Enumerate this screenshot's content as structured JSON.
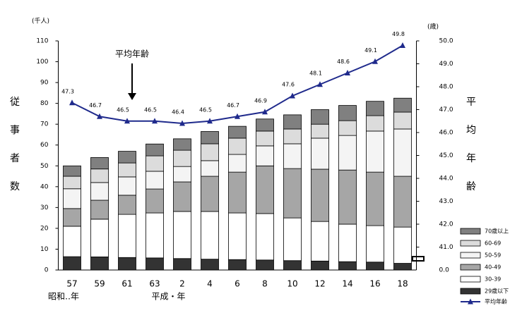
{
  "chart_data": {
    "type": "stacked_bar_line",
    "y_unit_label": "(千人)",
    "y2_unit_label": "(歳)",
    "y_axis_title": "従事者数",
    "y2_axis_title": "平均年齢",
    "annotation": "平均年齢",
    "era_labels": [
      "昭和‥年",
      "平成・年"
    ],
    "categories": [
      "57",
      "59",
      "61",
      "63",
      "2",
      "4",
      "6",
      "8",
      "10",
      "12",
      "14",
      "16",
      "18"
    ],
    "series": [
      {
        "name": "29歳以下",
        "color": "#333333",
        "values": [
          6.4,
          6.3,
          6,
          5.8,
          5.5,
          5.2,
          5,
          4.8,
          4.5,
          4.3,
          4,
          3.8,
          3.2
        ]
      },
      {
        "name": "30-39",
        "color": "#ffffff",
        "values": [
          14.6,
          18.1,
          20.7,
          21.6,
          22.6,
          22.9,
          22.4,
          22.3,
          20.5,
          19,
          18,
          17.5,
          17.4
        ]
      },
      {
        "name": "40-49",
        "color": "#a6a6a6",
        "values": [
          8.5,
          9.1,
          9.2,
          11.5,
          14.2,
          16.9,
          19.6,
          22.9,
          23.7,
          25.1,
          26,
          25.7,
          24.4
        ]
      },
      {
        "name": "50-59",
        "color": "#f4f4f4",
        "values": [
          9.5,
          8.5,
          8.8,
          8.5,
          7.4,
          7.5,
          8.5,
          9.6,
          11.9,
          14.9,
          16.6,
          19.7,
          22.7
        ]
      },
      {
        "name": "60-69",
        "color": "#dcdcdc",
        "values": [
          6,
          6.5,
          6.7,
          7.4,
          7.8,
          8.1,
          7.8,
          7.1,
          7.1,
          6.7,
          7.1,
          7.4,
          8.1
        ]
      },
      {
        "name": "70歳以上",
        "color": "#808080",
        "values": [
          5,
          5.5,
          5.6,
          5.7,
          5.5,
          5.9,
          5.7,
          5.8,
          6.8,
          7,
          7.3,
          6.9,
          6.7
        ]
      },
      {
        "name": "平均年齢",
        "color": "#1f2a8c",
        "axis": "y2",
        "type": "line",
        "values": [
          47.3,
          46.7,
          46.5,
          46.5,
          46.4,
          46.5,
          46.7,
          46.9,
          47.6,
          48.1,
          48.6,
          49.1,
          49.8
        ]
      }
    ],
    "ylim": [
      0,
      110
    ],
    "yticks": [
      0,
      10,
      20,
      30,
      40,
      50,
      60,
      70,
      80,
      90,
      100,
      110
    ],
    "y2lim": [
      40,
      50
    ],
    "y2ticks": [
      {
        "value": 41,
        "label": "41.0"
      },
      {
        "value": 42,
        "label": "42.0"
      },
      {
        "value": 43,
        "label": "43.0"
      },
      {
        "value": 44,
        "label": "44.0"
      },
      {
        "value": 45,
        "label": "45.0"
      },
      {
        "value": 46,
        "label": "46.0"
      },
      {
        "value": 47,
        "label": "47.0"
      },
      {
        "value": 48,
        "label": "48.0"
      },
      {
        "value": 49,
        "label": "49.0"
      },
      {
        "value": 50,
        "label": "50.0"
      }
    ],
    "y2_axis_break_label": "0.0",
    "legend": "bottom-right"
  }
}
